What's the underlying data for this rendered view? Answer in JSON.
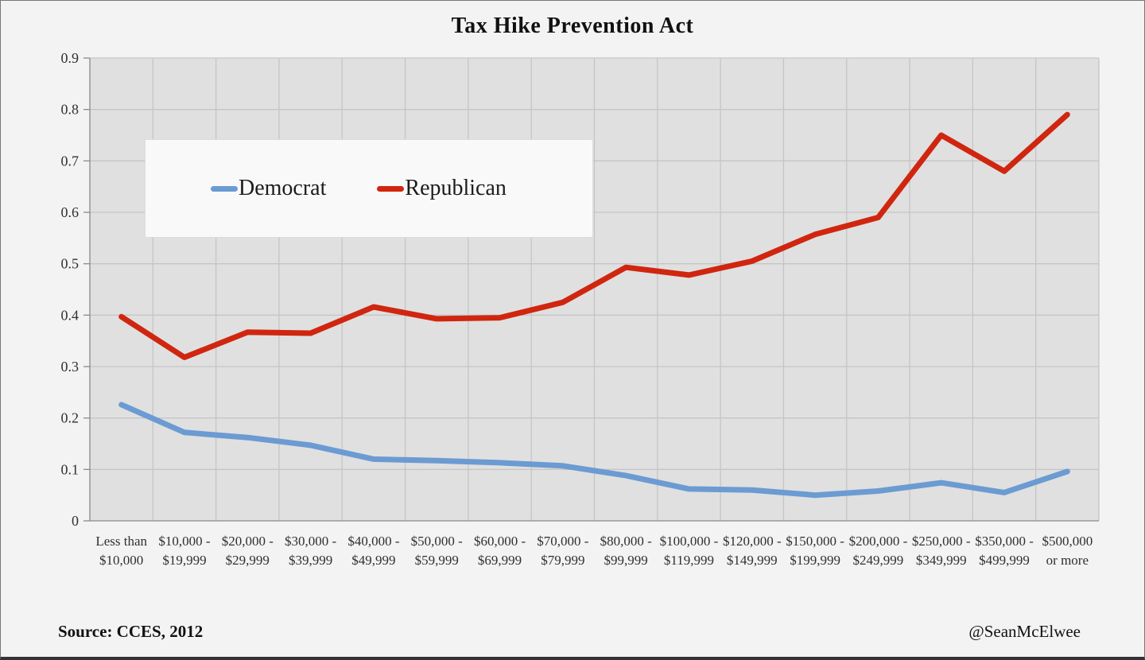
{
  "title": "Tax Hike Prevention Act",
  "footer": {
    "source": "Source: CCES, 2012",
    "credit": "@SeanMcElwee"
  },
  "legend": {
    "items": [
      {
        "label": "Democrat",
        "color": "#6b9bd2"
      },
      {
        "label": "Republican",
        "color": "#d0260f"
      }
    ]
  },
  "chart_data": {
    "type": "line",
    "title": "Tax Hike Prevention Act",
    "categories": [
      "Less than $10,000",
      "$10,000 - $19,999",
      "$20,000 - $29,999",
      "$30,000 - $39,999",
      "$40,000 - $49,999",
      "$50,000 - $59,999",
      "$60,000 - $69,999",
      "$70,000 - $79,999",
      "$80,000 - $99,999",
      "$100,000 - $119,999",
      "$120,000 - $149,999",
      "$150,000 - $199,999",
      "$200,000 - $249,999",
      "$250,000 - $349,999",
      "$350,000 - $499,999",
      "$500,000 or more"
    ],
    "category_label_lines": [
      [
        "Less than",
        "$10,000"
      ],
      [
        "$10,000 -",
        "$19,999"
      ],
      [
        "$20,000 -",
        "$29,999"
      ],
      [
        "$30,000 -",
        "$39,999"
      ],
      [
        "$40,000 -",
        "$49,999"
      ],
      [
        "$50,000 -",
        "$59,999"
      ],
      [
        "$60,000 -",
        "$69,999"
      ],
      [
        "$70,000 -",
        "$79,999"
      ],
      [
        "$80,000 -",
        "$99,999"
      ],
      [
        "$100,000 -",
        "$119,999"
      ],
      [
        "$120,000 -",
        "$149,999"
      ],
      [
        "$150,000 -",
        "$199,999"
      ],
      [
        "$200,000 -",
        "$249,999"
      ],
      [
        "$250,000 -",
        "$349,999"
      ],
      [
        "$350,000 -",
        "$499,999"
      ],
      [
        "$500,000",
        "or more"
      ]
    ],
    "series": [
      {
        "name": "Democrat",
        "color": "#6b9bd2",
        "values": [
          0.226,
          0.172,
          0.162,
          0.147,
          0.12,
          0.117,
          0.113,
          0.107,
          0.088,
          0.062,
          0.06,
          0.05,
          0.058,
          0.074,
          0.055,
          0.096
        ]
      },
      {
        "name": "Republican",
        "color": "#d0260f",
        "values": [
          0.397,
          0.318,
          0.367,
          0.365,
          0.416,
          0.393,
          0.395,
          0.425,
          0.493,
          0.478,
          0.505,
          0.557,
          0.59,
          0.75,
          0.68,
          0.79
        ]
      }
    ],
    "ylim": [
      0,
      0.9
    ],
    "ytick_step": 0.1,
    "ytick_labels_top_to_bottom": [
      "0.9",
      "0.8",
      "0.7",
      "0.6",
      "0.5",
      "0.4",
      "0.3",
      "0.2",
      "0.1",
      "0"
    ],
    "grid": true,
    "legend_position": "inside-upper-left",
    "colors": {
      "plot_background": "#e0e0e0",
      "page_background": "#f3f3f3",
      "gridline": "#c5c5c5",
      "axis": "#8a8a8a",
      "text": "#303030"
    }
  }
}
